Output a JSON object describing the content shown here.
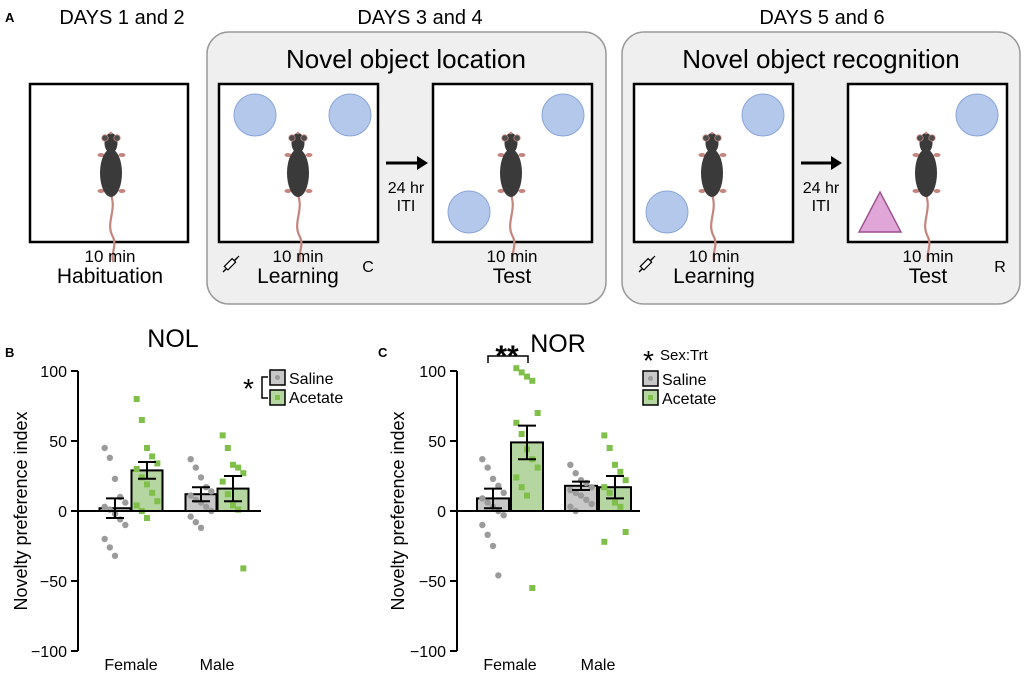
{
  "panel_a": {
    "letter": "A",
    "headers": {
      "d12": "DAYS 1 and 2",
      "d34": "DAYS 3 and 4",
      "d56": "DAYS 5 and 6"
    },
    "group_nol": "Novel object location",
    "group_nor": "Novel object recognition",
    "arrow_label_1": "24 hr",
    "arrow_label_2": "ITI",
    "habituation": {
      "time": "10 min",
      "phase": "Habituation"
    },
    "nol_learning": {
      "time": "10 min",
      "phase": "Learning",
      "tag": "C"
    },
    "nol_test": {
      "time": "10 min",
      "phase": "Test"
    },
    "nor_learning": {
      "time": "10 min",
      "phase": "Learning"
    },
    "nor_test": {
      "time": "10 min",
      "phase": "Test",
      "tag": "R"
    },
    "colors": {
      "circle_object": "#b4c8ec",
      "triangle_object": "#e0a6d8",
      "mouse": "#3a3a3a",
      "tail": "#c4857e",
      "group_bg": "#efefef"
    }
  },
  "panel_b": {
    "letter": "B",
    "legend_star": "*",
    "saline_label": "Saline",
    "acetate_label": "Acetate"
  },
  "panel_c": {
    "letter": "C",
    "sig_star": "**",
    "legend_star": "*",
    "interaction_label": "Sex:Trt",
    "saline_label": "Saline",
    "acetate_label": "Acetate"
  },
  "chart_data": [
    {
      "type": "bar",
      "title": "NOL",
      "ylabel": "Novelty preference index",
      "ylim": [
        -100,
        100
      ],
      "yticks": [
        "100",
        "50",
        "0",
        "−50",
        "−100"
      ],
      "categories": [
        "Female",
        "Male"
      ],
      "series": [
        {
          "name": "Saline",
          "color": "#c8c8c8",
          "values": [
            2,
            12
          ],
          "sem": [
            7,
            5
          ],
          "points": [
            [
              45,
              38,
              23,
              10,
              6,
              3,
              1,
              -2,
              -6,
              -10,
              -20,
              -26,
              -32
            ],
            [
              37,
              31,
              24,
              17,
              14,
              11,
              8,
              6,
              3,
              0,
              -4,
              -8,
              -12
            ]
          ]
        },
        {
          "name": "Acetate",
          "color": "#b5d6a0",
          "values": [
            29,
            16
          ],
          "sem": [
            6,
            9
          ],
          "points": [
            [
              80,
              65,
              45,
              39,
              34,
              30,
              24,
              19,
              13,
              7,
              4,
              0,
              -5
            ],
            [
              54,
              45,
              33,
              31,
              27,
              21,
              12,
              4,
              1,
              -41
            ]
          ]
        }
      ],
      "point_colors": {
        "Saline": "#9b9b9b",
        "Acetate": "#7fbf4a"
      }
    },
    {
      "type": "bar",
      "title": "NOR",
      "ylabel": "Novelty preference index",
      "ylim": [
        -100,
        100
      ],
      "yticks": [
        "100",
        "50",
        "0",
        "−50",
        "−100"
      ],
      "categories": [
        "Female",
        "Male"
      ],
      "series": [
        {
          "name": "Saline",
          "color": "#c8c8c8",
          "values": [
            9,
            18
          ],
          "sem": [
            7,
            3
          ],
          "points": [
            [
              37,
              31,
              23,
              18,
              13,
              9,
              6,
              3,
              0,
              -3,
              -10,
              -17,
              -25,
              -46
            ],
            [
              33,
              27,
              22,
              20,
              17,
              15,
              13,
              11,
              8,
              5,
              3,
              0
            ]
          ]
        },
        {
          "name": "Acetate",
          "color": "#b5d6a0",
          "values": [
            49,
            17
          ],
          "sem": [
            12,
            8
          ],
          "points": [
            [
              102,
              99,
              96,
              93,
              70,
              63,
              55,
              44,
              37,
              31,
              24,
              17,
              11,
              -55
            ],
            [
              54,
              45,
              33,
              28,
              22,
              17,
              13,
              6,
              3,
              -15,
              -22
            ]
          ]
        }
      ],
      "point_colors": {
        "Saline": "#9b9b9b",
        "Acetate": "#7fbf4a"
      }
    }
  ]
}
